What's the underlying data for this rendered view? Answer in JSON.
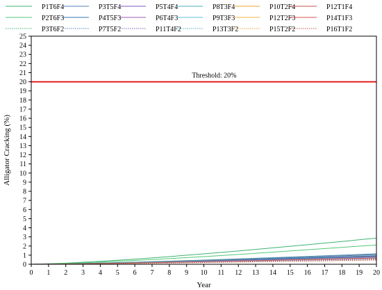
{
  "chart_data": {
    "type": "line",
    "xlabel": "Year",
    "ylabel": "Alligator Cracking (%)",
    "xlim": [
      0,
      20
    ],
    "ylim": [
      0,
      25
    ],
    "x_ticks": [
      "0",
      "1",
      "2",
      "3",
      "4",
      "5",
      "6",
      "7",
      "8",
      "9",
      "10",
      "11",
      "12",
      "13",
      "14",
      "15",
      "16",
      "17",
      "18",
      "19",
      "20"
    ],
    "y_ticks": [
      "0",
      "1",
      "2",
      "3",
      "4",
      "5",
      "6",
      "7",
      "8",
      "9",
      "10",
      "11",
      "12",
      "13",
      "14",
      "15",
      "16",
      "17",
      "18",
      "19",
      "20",
      "21",
      "22",
      "23",
      "24",
      "25"
    ],
    "grid": false,
    "legend_position": "top",
    "x": [
      0,
      2,
      4,
      6,
      8,
      10,
      12,
      14,
      16,
      18,
      20
    ],
    "threshold": {
      "value": 20,
      "label": "Threshold: 20%",
      "color": "#e00000"
    },
    "series": [
      {
        "name": "P1T6F4",
        "color": "#3cb371",
        "dash": "solid",
        "values": [
          0,
          0.12,
          0.32,
          0.56,
          0.84,
          1.14,
          1.46,
          1.8,
          2.14,
          2.5,
          2.87
        ]
      },
      {
        "name": "P3T5F4",
        "color": "#4f81bd",
        "dash": "solid",
        "values": [
          0,
          0.05,
          0.13,
          0.23,
          0.34,
          0.46,
          0.59,
          0.72,
          0.86,
          1.0,
          1.15
        ]
      },
      {
        "name": "P5T4F4",
        "color": "#7e57c2",
        "dash": "solid",
        "values": [
          0,
          0.05,
          0.12,
          0.21,
          0.31,
          0.42,
          0.54,
          0.66,
          0.79,
          0.92,
          1.05
        ]
      },
      {
        "name": "P8T3F4",
        "color": "#4bacc6",
        "dash": "solid",
        "values": [
          0,
          0.04,
          0.11,
          0.19,
          0.28,
          0.38,
          0.49,
          0.6,
          0.71,
          0.83,
          0.95
        ]
      },
      {
        "name": "P10T2F4",
        "color": "#f0a030",
        "dash": "solid",
        "values": [
          0,
          0.04,
          0.1,
          0.17,
          0.25,
          0.34,
          0.43,
          0.53,
          0.63,
          0.74,
          0.85
        ]
      },
      {
        "name": "P12T1F4",
        "color": "#c0504d",
        "dash": "solid",
        "values": [
          0,
          0.04,
          0.1,
          0.18,
          0.27,
          0.36,
          0.46,
          0.56,
          0.67,
          0.78,
          0.9
        ]
      },
      {
        "name": "P2T6F3",
        "color": "#50c878",
        "dash": "solid",
        "values": [
          0,
          0.09,
          0.24,
          0.42,
          0.62,
          0.84,
          1.08,
          1.33,
          1.59,
          1.85,
          2.12
        ]
      },
      {
        "name": "P4T5F3",
        "color": "#2e75b6",
        "dash": "solid",
        "values": [
          0,
          0.04,
          0.1,
          0.18,
          0.27,
          0.36,
          0.46,
          0.57,
          0.68,
          0.79,
          0.9
        ]
      },
      {
        "name": "P6T4F3",
        "color": "#9b59b6",
        "dash": "solid",
        "values": [
          0,
          0.04,
          0.09,
          0.16,
          0.24,
          0.32,
          0.41,
          0.5,
          0.6,
          0.7,
          0.8
        ]
      },
      {
        "name": "P9T3F3",
        "color": "#5bc0de",
        "dash": "solid",
        "values": [
          0,
          0.03,
          0.08,
          0.15,
          0.22,
          0.3,
          0.38,
          0.47,
          0.56,
          0.65,
          0.74
        ]
      },
      {
        "name": "P12T2F3",
        "color": "#f5b041",
        "dash": "solid",
        "values": [
          0,
          0.03,
          0.08,
          0.13,
          0.2,
          0.27,
          0.34,
          0.42,
          0.5,
          0.58,
          0.66
        ]
      },
      {
        "name": "P14T1F3",
        "color": "#d9534f",
        "dash": "solid",
        "values": [
          0,
          0.03,
          0.08,
          0.14,
          0.21,
          0.28,
          0.36,
          0.44,
          0.52,
          0.6,
          0.69
        ]
      },
      {
        "name": "P3T6F2",
        "color": "#3cb371",
        "dash": "dotted",
        "values": [
          0,
          0.05,
          0.13,
          0.22,
          0.33,
          0.44,
          0.56,
          0.69,
          0.82,
          0.95,
          1.08
        ]
      },
      {
        "name": "P7T5F2",
        "color": "#4f81bd",
        "dash": "dotted",
        "values": [
          0,
          0.03,
          0.07,
          0.12,
          0.18,
          0.24,
          0.31,
          0.38,
          0.45,
          0.52,
          0.6
        ]
      },
      {
        "name": "P11T4F2",
        "color": "#7e57c2",
        "dash": "dotted",
        "values": [
          0,
          0.03,
          0.07,
          0.11,
          0.17,
          0.23,
          0.29,
          0.36,
          0.43,
          0.5,
          0.57
        ]
      },
      {
        "name": "P13T3F2",
        "color": "#4bacc6",
        "dash": "dotted",
        "values": [
          0,
          0.02,
          0.06,
          0.1,
          0.15,
          0.2,
          0.26,
          0.32,
          0.38,
          0.44,
          0.5
        ]
      },
      {
        "name": "P15T2F2",
        "color": "#f0a030",
        "dash": "dotted",
        "values": [
          0,
          0.02,
          0.05,
          0.09,
          0.13,
          0.18,
          0.23,
          0.28,
          0.34,
          0.39,
          0.45
        ]
      },
      {
        "name": "P16T1F2",
        "color": "#c0504d",
        "dash": "dotted",
        "values": [
          0,
          0.02,
          0.06,
          0.1,
          0.14,
          0.19,
          0.25,
          0.3,
          0.36,
          0.42,
          0.48
        ]
      }
    ]
  }
}
